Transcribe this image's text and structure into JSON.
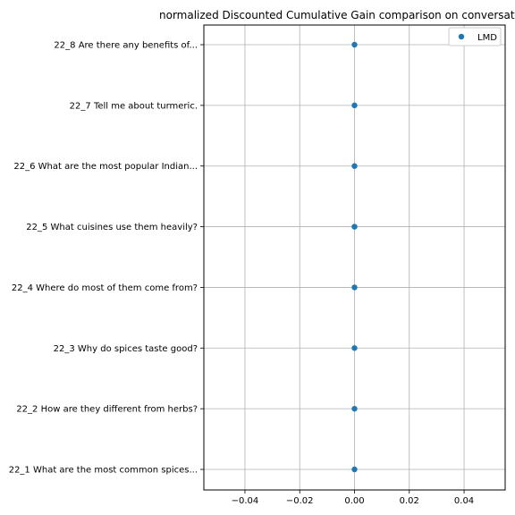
{
  "chart_data": {
    "type": "scatter",
    "title": "normalized Discounted Cumulative Gain comparison on conversat",
    "xlabel": "",
    "ylabel": "",
    "xlim": [
      -0.055,
      0.055
    ],
    "x_ticks": [
      -0.04,
      -0.02,
      0.0,
      0.02,
      0.04
    ],
    "x_tick_labels": [
      "−0.04",
      "−0.02",
      "0.00",
      "0.02",
      "0.04"
    ],
    "categories": [
      "22_1 What are the most common spices...",
      "22_2 How are they different from herbs?",
      "22_3 Why do spices taste good?",
      "22_4 Where do most of them come from?",
      "22_5 What cuisines use them heavily?",
      "22_6 What are the most popular Indian...",
      "22_7 Tell me about turmeric.",
      "22_8 Are there any benefits of..."
    ],
    "series": [
      {
        "name": "LMD",
        "color": "#1f77b4",
        "values": [
          0,
          0,
          0,
          0,
          0,
          0,
          0,
          0
        ]
      }
    ],
    "grid": true,
    "legend_position": "top-right"
  }
}
